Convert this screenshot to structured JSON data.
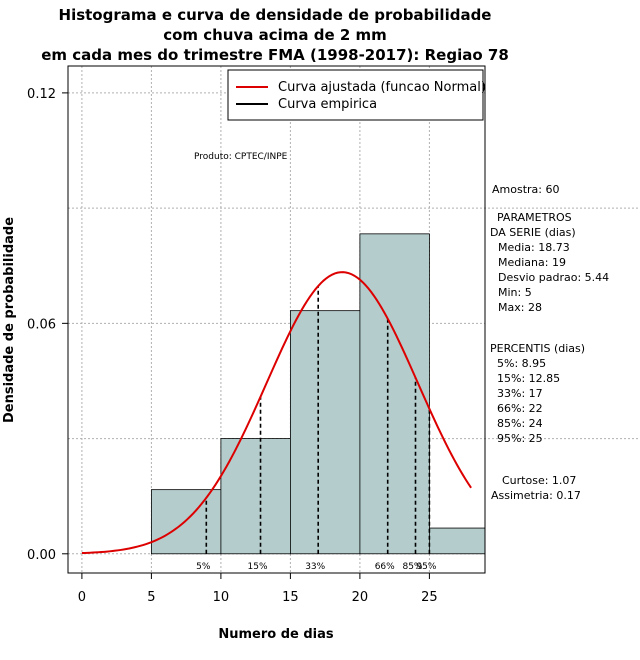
{
  "chart_data": {
    "type": "histogram",
    "title": [
      "Histograma e curva de densidade de probabilidade",
      "com chuva acima de 2 mm",
      "em cada mes do trimestre FMA (1998-2017): Regiao 78"
    ],
    "xlabel": "Numero de dias",
    "ylabel": "Densidade de probabilidade",
    "xlim": [
      -1,
      29
    ],
    "ylim": [
      -0.005,
      0.127
    ],
    "x_ticks": [
      "0",
      "5",
      "10",
      "15",
      "20",
      "25"
    ],
    "y_ticks": [
      "0.00",
      "0.06",
      "0.12"
    ],
    "bins": [
      {
        "from": 5,
        "to": 10,
        "density": 0.0167
      },
      {
        "from": 10,
        "to": 15,
        "density": 0.03
      },
      {
        "from": 15,
        "to": 20,
        "density": 0.0633
      },
      {
        "from": 20,
        "to": 25,
        "density": 0.0833
      },
      {
        "from": 25,
        "to": 30,
        "density": 0.0067
      }
    ],
    "normal_fit": {
      "mean": 18.73,
      "sd": 5.44,
      "x_from": 0,
      "x_to": 28
    },
    "percentiles": [
      {
        "label": "5%",
        "x": 8.95
      },
      {
        "label": "15%",
        "x": 12.85
      },
      {
        "label": "33%",
        "x": 17
      },
      {
        "label": "66%",
        "x": 22
      },
      {
        "label": "85%",
        "x": 24
      },
      {
        "label": "95%",
        "x": 25
      }
    ],
    "legend": [
      "Curva ajustada (funcao Normal)",
      "Curva empirica"
    ],
    "product": "Produto: CPTEC/INPE",
    "colors": {
      "bar": "#b5cccc",
      "curve": "#dd0000",
      "grid": "#b0b0b0"
    }
  },
  "side_panel": {
    "sample": "Amostra: 60",
    "params_title": [
      "PARAMETROS",
      "DA SERIE (dias)"
    ],
    "params": [
      "Media: 18.73",
      "Mediana: 19",
      "Desvio padrao: 5.44",
      "Min: 5",
      "Max: 28"
    ],
    "percentis_title": "PERCENTIS (dias)",
    "percentis": [
      "5%: 8.95",
      "15%: 12.85",
      "33%: 17",
      "66%: 22",
      "85%: 24",
      "95%: 25"
    ],
    "curtose": "Curtose: 1.07",
    "assimetria": "Assimetria: 0.17"
  }
}
